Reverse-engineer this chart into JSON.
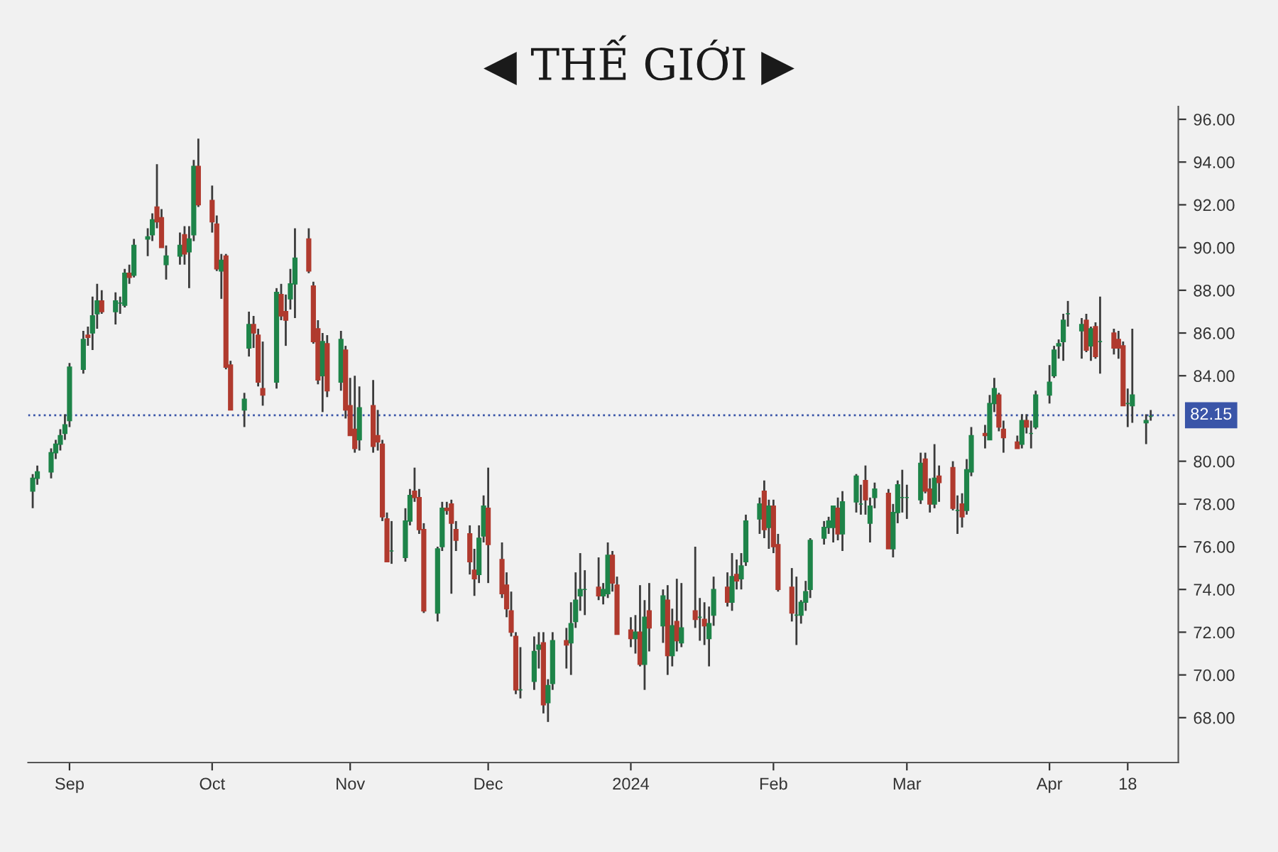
{
  "chart_data": {
    "type": "candlestick",
    "title": "◀ THẾ GIỚI ▶",
    "x": [
      "2023-08-24",
      "2023-08-25",
      "2023-08-28",
      "2023-08-29",
      "2023-08-30",
      "2023-08-31",
      "2023-09-01",
      "2023-09-04",
      "2023-09-05",
      "2023-09-06",
      "2023-09-07",
      "2023-09-08",
      "2023-09-11",
      "2023-09-12",
      "2023-09-13",
      "2023-09-14",
      "2023-09-15",
      "2023-09-18",
      "2023-09-19",
      "2023-09-20",
      "2023-09-21",
      "2023-09-22",
      "2023-09-25",
      "2023-09-26",
      "2023-09-27",
      "2023-09-28",
      "2023-09-29",
      "2023-10-02",
      "2023-10-03",
      "2023-10-04",
      "2023-10-05",
      "2023-10-06",
      "2023-10-09",
      "2023-10-10",
      "2023-10-11",
      "2023-10-12",
      "2023-10-13",
      "2023-10-16",
      "2023-10-17",
      "2023-10-18",
      "2023-10-19",
      "2023-10-20",
      "2023-10-23",
      "2023-10-24",
      "2023-10-25",
      "2023-10-26",
      "2023-10-27",
      "2023-10-30",
      "2023-10-31",
      "2023-11-01",
      "2023-11-02",
      "2023-11-03",
      "2023-11-06",
      "2023-11-07",
      "2023-11-08",
      "2023-11-09",
      "2023-11-10",
      "2023-11-13",
      "2023-11-14",
      "2023-11-15",
      "2023-11-16",
      "2023-11-17",
      "2023-11-20",
      "2023-11-21",
      "2023-11-22",
      "2023-11-23",
      "2023-11-24",
      "2023-11-27",
      "2023-11-28",
      "2023-11-29",
      "2023-11-30",
      "2023-12-01",
      "2023-12-04",
      "2023-12-05",
      "2023-12-06",
      "2023-12-07",
      "2023-12-08",
      "2023-12-11",
      "2023-12-12",
      "2023-12-13",
      "2023-12-14",
      "2023-12-15",
      "2023-12-18",
      "2023-12-19",
      "2023-12-20",
      "2023-12-21",
      "2023-12-22",
      "2023-12-25",
      "2023-12-26",
      "2023-12-27",
      "2023-12-28",
      "2023-12-29",
      "2024-01-01",
      "2024-01-02",
      "2024-01-03",
      "2024-01-04",
      "2024-01-05",
      "2024-01-08",
      "2024-01-09",
      "2024-01-10",
      "2024-01-11",
      "2024-01-12",
      "2024-01-15",
      "2024-01-16",
      "2024-01-17",
      "2024-01-18",
      "2024-01-19",
      "2024-01-22",
      "2024-01-23",
      "2024-01-24",
      "2024-01-25",
      "2024-01-26",
      "2024-01-29",
      "2024-01-30",
      "2024-01-31",
      "2024-02-01",
      "2024-02-02",
      "2024-02-05",
      "2024-02-06",
      "2024-02-07",
      "2024-02-08",
      "2024-02-09",
      "2024-02-12",
      "2024-02-13",
      "2024-02-14",
      "2024-02-15",
      "2024-02-16",
      "2024-02-19",
      "2024-02-20",
      "2024-02-21",
      "2024-02-22",
      "2024-02-23",
      "2024-02-26",
      "2024-02-27",
      "2024-02-28",
      "2024-02-29",
      "2024-03-01",
      "2024-03-04",
      "2024-03-05",
      "2024-03-06",
      "2024-03-07",
      "2024-03-08",
      "2024-03-11",
      "2024-03-12",
      "2024-03-13",
      "2024-03-14",
      "2024-03-15",
      "2024-03-18",
      "2024-03-19",
      "2024-03-20",
      "2024-03-21",
      "2024-03-22",
      "2024-03-25",
      "2024-03-26",
      "2024-03-27",
      "2024-03-28",
      "2024-03-29",
      "2024-04-01",
      "2024-04-02",
      "2024-04-03",
      "2024-04-04",
      "2024-04-05",
      "2024-04-08",
      "2024-04-09",
      "2024-04-10",
      "2024-04-11",
      "2024-04-12",
      "2024-04-15",
      "2024-04-16",
      "2024-04-17",
      "2024-04-18",
      "2024-04-19",
      "2024-04-22",
      "2024-04-23"
    ],
    "ohlc": [
      [
        78.6,
        79.4,
        77.8,
        79.2
      ],
      [
        79.2,
        79.8,
        78.9,
        79.5
      ],
      [
        79.5,
        80.6,
        79.2,
        80.4
      ],
      [
        80.4,
        81.0,
        80.1,
        80.8
      ],
      [
        80.8,
        81.5,
        80.5,
        81.2
      ],
      [
        81.3,
        82.2,
        81.0,
        81.7
      ],
      [
        81.9,
        84.6,
        81.6,
        84.4
      ],
      [
        84.3,
        86.1,
        84.1,
        85.7
      ],
      [
        85.9,
        86.3,
        85.4,
        85.8
      ],
      [
        86.0,
        87.7,
        85.2,
        86.8
      ],
      [
        86.9,
        88.3,
        86.2,
        87.5
      ],
      [
        87.5,
        88.0,
        86.9,
        87.0
      ],
      [
        87.0,
        87.9,
        86.4,
        87.5
      ],
      [
        87.4,
        87.7,
        86.9,
        87.4
      ],
      [
        87.3,
        89.0,
        87.2,
        88.8
      ],
      [
        88.8,
        89.2,
        88.3,
        88.6
      ],
      [
        88.7,
        90.4,
        88.6,
        90.1
      ],
      [
        90.4,
        90.9,
        89.6,
        90.5
      ],
      [
        90.6,
        91.6,
        90.3,
        91.3
      ],
      [
        91.9,
        93.9,
        90.9,
        91.2
      ],
      [
        91.4,
        91.8,
        90.0,
        90.0
      ],
      [
        89.2,
        90.1,
        88.5,
        89.6
      ],
      [
        89.6,
        90.7,
        89.2,
        90.1
      ],
      [
        90.6,
        91.0,
        89.2,
        89.7
      ],
      [
        89.8,
        91.0,
        88.1,
        90.4
      ],
      [
        90.6,
        94.1,
        90.3,
        93.8
      ],
      [
        93.8,
        95.1,
        91.9,
        92.0
      ],
      [
        92.2,
        92.9,
        90.7,
        91.2
      ],
      [
        91.1,
        91.5,
        88.9,
        89.0
      ],
      [
        88.9,
        89.7,
        87.6,
        89.4
      ],
      [
        89.6,
        89.7,
        84.3,
        84.4
      ],
      [
        84.5,
        84.7,
        82.4,
        82.4
      ],
      [
        82.4,
        83.2,
        81.6,
        82.9
      ],
      [
        85.3,
        87.0,
        84.9,
        86.4
      ],
      [
        86.4,
        86.8,
        85.3,
        86.0
      ],
      [
        85.9,
        86.2,
        83.5,
        83.7
      ],
      [
        83.4,
        85.6,
        82.6,
        83.1
      ],
      [
        83.7,
        88.1,
        83.4,
        87.9
      ],
      [
        87.8,
        88.3,
        86.6,
        86.8
      ],
      [
        87.0,
        87.8,
        85.4,
        86.6
      ],
      [
        87.6,
        89.0,
        87.1,
        88.3
      ],
      [
        88.3,
        90.9,
        86.7,
        89.5
      ],
      [
        90.4,
        90.9,
        88.8,
        88.9
      ],
      [
        88.2,
        88.4,
        85.5,
        85.6
      ],
      [
        86.2,
        86.6,
        83.6,
        83.8
      ],
      [
        84.0,
        86.0,
        82.3,
        85.6
      ],
      [
        85.5,
        85.9,
        83.0,
        83.3
      ],
      [
        83.7,
        86.1,
        83.3,
        85.7
      ],
      [
        85.2,
        85.4,
        82.0,
        82.4
      ],
      [
        82.6,
        83.9,
        81.2,
        81.2
      ],
      [
        81.5,
        84.0,
        80.4,
        80.6
      ],
      [
        81.0,
        83.5,
        80.5,
        82.5
      ],
      [
        82.6,
        83.8,
        80.4,
        80.7
      ],
      [
        81.2,
        82.4,
        80.5,
        80.9
      ],
      [
        80.8,
        81.0,
        77.2,
        77.4
      ],
      [
        77.3,
        77.6,
        75.3,
        75.3
      ],
      [
        75.8,
        77.2,
        75.2,
        75.8
      ],
      [
        75.5,
        77.8,
        75.3,
        77.2
      ],
      [
        77.2,
        78.7,
        77.0,
        78.4
      ],
      [
        78.6,
        79.7,
        78.1,
        78.3
      ],
      [
        78.3,
        78.7,
        76.6,
        76.8
      ],
      [
        76.8,
        77.1,
        72.9,
        73.0
      ],
      [
        72.9,
        76.0,
        72.5,
        75.9
      ],
      [
        76.0,
        78.1,
        75.8,
        77.8
      ],
      [
        77.8,
        78.1,
        77.5,
        77.7
      ],
      [
        78.0,
        78.2,
        73.8,
        77.1
      ],
      [
        76.8,
        77.2,
        75.8,
        76.3
      ],
      [
        76.6,
        77.0,
        74.7,
        75.3
      ],
      [
        74.9,
        75.9,
        73.7,
        74.5
      ],
      [
        74.7,
        77.0,
        74.3,
        76.4
      ],
      [
        76.5,
        78.4,
        76.2,
        77.9
      ],
      [
        77.8,
        79.7,
        74.3,
        76.1
      ],
      [
        75.4,
        76.2,
        73.6,
        73.8
      ],
      [
        74.2,
        74.8,
        72.7,
        73.1
      ],
      [
        73.0,
        73.9,
        71.8,
        72.0
      ],
      [
        71.8,
        72.0,
        69.1,
        69.3
      ],
      [
        69.3,
        71.3,
        68.9,
        69.3
      ],
      [
        69.7,
        71.8,
        69.3,
        71.1
      ],
      [
        71.2,
        72.0,
        70.3,
        71.4
      ],
      [
        71.5,
        72.0,
        68.2,
        68.6
      ],
      [
        68.7,
        69.8,
        67.8,
        69.5
      ],
      [
        69.6,
        72.0,
        69.3,
        71.6
      ],
      [
        71.6,
        72.2,
        70.3,
        71.4
      ],
      [
        71.5,
        73.4,
        70.0,
        72.4
      ],
      [
        72.5,
        74.8,
        72.2,
        73.5
      ],
      [
        73.7,
        75.7,
        73.0,
        74.0
      ],
      [
        74.0,
        74.9,
        72.8,
        74.0
      ],
      [
        74.1,
        75.5,
        73.5,
        73.7
      ],
      [
        73.7,
        74.3,
        73.3,
        74.0
      ],
      [
        73.8,
        76.2,
        73.6,
        75.6
      ],
      [
        75.6,
        75.8,
        73.9,
        74.3
      ],
      [
        74.2,
        74.6,
        71.9,
        71.9
      ],
      [
        72.1,
        72.7,
        71.3,
        71.7
      ],
      [
        71.7,
        72.8,
        71.0,
        72.0
      ],
      [
        72.0,
        74.2,
        70.4,
        70.5
      ],
      [
        70.5,
        73.5,
        69.3,
        72.7
      ],
      [
        73.0,
        74.3,
        71.1,
        72.2
      ],
      [
        72.3,
        74.0,
        71.5,
        73.7
      ],
      [
        73.5,
        74.2,
        70.0,
        70.9
      ],
      [
        70.9,
        73.1,
        70.4,
        72.3
      ],
      [
        72.5,
        74.5,
        71.1,
        71.6
      ],
      [
        71.5,
        74.3,
        71.3,
        72.2
      ],
      [
        73.0,
        76.0,
        72.2,
        72.6
      ],
      [
        72.7,
        73.6,
        71.6,
        72.7
      ],
      [
        72.6,
        73.4,
        71.4,
        72.3
      ],
      [
        71.7,
        73.2,
        70.4,
        72.4
      ],
      [
        72.8,
        74.6,
        72.3,
        74.0
      ],
      [
        74.1,
        74.8,
        73.2,
        73.4
      ],
      [
        73.4,
        75.7,
        73.0,
        74.6
      ],
      [
        74.7,
        75.4,
        74.0,
        74.4
      ],
      [
        74.5,
        75.7,
        74.0,
        75.1
      ],
      [
        75.3,
        77.5,
        75.1,
        77.2
      ],
      [
        77.3,
        78.3,
        76.6,
        78.0
      ],
      [
        78.6,
        79.1,
        76.4,
        76.8
      ],
      [
        76.9,
        78.2,
        75.9,
        77.9
      ],
      [
        77.9,
        78.2,
        75.7,
        76.0
      ],
      [
        76.1,
        76.6,
        73.9,
        74.0
      ],
      [
        74.1,
        75.0,
        72.5,
        72.9
      ],
      [
        72.8,
        74.6,
        71.4,
        72.8
      ],
      [
        72.8,
        73.5,
        72.4,
        73.4
      ],
      [
        73.4,
        74.4,
        73.0,
        73.9
      ],
      [
        74.0,
        76.4,
        73.6,
        76.3
      ],
      [
        76.4,
        77.2,
        76.1,
        76.9
      ],
      [
        76.9,
        77.4,
        76.6,
        77.2
      ],
      [
        76.9,
        77.9,
        76.2,
        77.9
      ],
      [
        77.8,
        78.3,
        76.3,
        76.6
      ],
      [
        76.6,
        78.6,
        75.8,
        78.1
      ],
      [
        78.1,
        79.4,
        77.6,
        79.3
      ],
      [
        78.0,
        78.9,
        77.5,
        78.0
      ],
      [
        79.1,
        79.8,
        77.5,
        78.2
      ],
      [
        77.1,
        78.3,
        76.2,
        77.9
      ],
      [
        78.3,
        79.0,
        77.8,
        78.7
      ],
      [
        78.5,
        78.7,
        75.9,
        75.9
      ],
      [
        75.9,
        78.0,
        75.5,
        77.6
      ],
      [
        77.6,
        79.1,
        77.1,
        78.9
      ],
      [
        78.3,
        79.6,
        77.6,
        78.3
      ],
      [
        78.3,
        78.9,
        77.3,
        78.3
      ],
      [
        78.2,
        80.4,
        78.0,
        79.9
      ],
      [
        80.1,
        80.4,
        78.5,
        78.6
      ],
      [
        78.7,
        79.2,
        77.6,
        78.0
      ],
      [
        78.0,
        80.8,
        77.8,
        79.2
      ],
      [
        79.3,
        79.8,
        78.1,
        79.0
      ],
      [
        79.7,
        80.0,
        77.7,
        77.8
      ],
      [
        77.7,
        78.4,
        76.6,
        77.7
      ],
      [
        78.0,
        78.5,
        76.9,
        77.4
      ],
      [
        77.7,
        80.1,
        77.5,
        79.6
      ],
      [
        79.5,
        81.6,
        79.3,
        81.2
      ],
      [
        81.3,
        81.7,
        80.6,
        81.2
      ],
      [
        81.0,
        83.1,
        81.0,
        82.7
      ],
      [
        82.7,
        83.9,
        82.3,
        83.4
      ],
      [
        83.1,
        83.2,
        81.4,
        81.6
      ],
      [
        81.5,
        81.9,
        80.4,
        81.1
      ],
      [
        80.9,
        81.2,
        80.6,
        80.6
      ],
      [
        80.8,
        82.2,
        80.6,
        81.9
      ],
      [
        81.9,
        82.2,
        81.3,
        81.6
      ],
      [
        81.3,
        81.9,
        80.6,
        81.3
      ],
      [
        81.6,
        83.3,
        81.5,
        83.1
      ],
      [
        83.1,
        84.5,
        82.7,
        83.7
      ],
      [
        84.0,
        85.4,
        83.9,
        85.2
      ],
      [
        85.4,
        85.7,
        84.8,
        85.5
      ],
      [
        85.6,
        86.9,
        84.7,
        86.6
      ],
      [
        86.9,
        87.5,
        86.3,
        86.9
      ],
      [
        86.1,
        86.7,
        84.8,
        86.4
      ],
      [
        86.6,
        86.9,
        85.1,
        85.2
      ],
      [
        85.4,
        86.3,
        84.7,
        86.2
      ],
      [
        86.3,
        86.5,
        84.8,
        84.9
      ],
      [
        85.6,
        87.7,
        84.1,
        85.6
      ],
      [
        86.0,
        86.2,
        85.0,
        85.3
      ],
      [
        85.7,
        86.1,
        84.8,
        85.3
      ],
      [
        85.4,
        85.6,
        82.6,
        82.6
      ],
      [
        82.7,
        83.4,
        81.6,
        82.7
      ],
      [
        82.6,
        86.2,
        81.8,
        83.1
      ],
      [
        81.8,
        82.2,
        80.8,
        81.9
      ],
      [
        82.1,
        82.4,
        81.9,
        82.1
      ]
    ],
    "colors": [
      "#1e8449",
      "#1e8449",
      "#1e8449",
      "#1e8449",
      "#1e8449",
      "#1e8449",
      "#1e8449",
      "#1e8449",
      "#b03a2e",
      "#1e8449",
      "#1e8449",
      "#b03a2e",
      "#1e8449",
      "#1e8449",
      "#1e8449",
      "#b03a2e",
      "#1e8449",
      "#1e8449",
      "#1e8449",
      "#b03a2e",
      "#b03a2e",
      "#1e8449",
      "#1e8449",
      "#b03a2e",
      "#1e8449",
      "#1e8449",
      "#b03a2e",
      "#b03a2e",
      "#b03a2e",
      "#1e8449",
      "#b03a2e",
      "#b03a2e",
      "#1e8449",
      "#1e8449",
      "#b03a2e",
      "#b03a2e",
      "#b03a2e",
      "#1e8449",
      "#b03a2e",
      "#b03a2e",
      "#1e8449",
      "#1e8449",
      "#b03a2e",
      "#b03a2e",
      "#b03a2e",
      "#1e8449",
      "#b03a2e",
      "#1e8449",
      "#b03a2e",
      "#b03a2e",
      "#b03a2e",
      "#1e8449",
      "#b03a2e",
      "#b03a2e",
      "#b03a2e",
      "#b03a2e",
      "#1e8449",
      "#1e8449",
      "#1e8449",
      "#b03a2e",
      "#b03a2e",
      "#b03a2e",
      "#1e8449",
      "#1e8449",
      "#b03a2e",
      "#b03a2e",
      "#b03a2e",
      "#b03a2e",
      "#b03a2e",
      "#1e8449",
      "#1e8449",
      "#b03a2e",
      "#b03a2e",
      "#b03a2e",
      "#b03a2e",
      "#b03a2e",
      "#1e8449",
      "#1e8449",
      "#1e8449",
      "#b03a2e",
      "#1e8449",
      "#1e8449",
      "#b03a2e",
      "#1e8449",
      "#1e8449",
      "#1e8449",
      "#1e8449",
      "#b03a2e",
      "#1e8449",
      "#1e8449",
      "#b03a2e",
      "#b03a2e",
      "#b03a2e",
      "#1e8449",
      "#b03a2e",
      "#1e8449",
      "#b03a2e",
      "#1e8449",
      "#b03a2e",
      "#1e8449",
      "#b03a2e",
      "#1e8449",
      "#b03a2e",
      "#1e8449",
      "#b03a2e",
      "#1e8449",
      "#1e8449",
      "#b03a2e",
      "#1e8449",
      "#b03a2e",
      "#1e8449",
      "#1e8449",
      "#1e8449",
      "#b03a2e",
      "#1e8449",
      "#b03a2e",
      "#b03a2e",
      "#b03a2e",
      "#1e8449",
      "#1e8449",
      "#1e8449",
      "#1e8449",
      "#1e8449",
      "#1e8449",
      "#1e8449",
      "#b03a2e",
      "#1e8449",
      "#1e8449",
      "#1e8449",
      "#b03a2e",
      "#1e8449",
      "#1e8449",
      "#b03a2e",
      "#1e8449",
      "#1e8449",
      "#1e8449",
      "#1e8449",
      "#1e8449",
      "#b03a2e",
      "#b03a2e",
      "#1e8449",
      "#b03a2e",
      "#b03a2e",
      "#1e8449",
      "#b03a2e",
      "#1e8449",
      "#1e8449",
      "#b03a2e",
      "#1e8449",
      "#1e8449",
      "#b03a2e",
      "#b03a2e",
      "#b03a2e",
      "#1e8449",
      "#b03a2e",
      "#1e8449",
      "#1e8449",
      "#1e8449",
      "#1e8449",
      "#1e8449",
      "#1e8449",
      "#1e8449",
      "#1e8449",
      "#b03a2e",
      "#1e8449",
      "#b03a2e",
      "#1e8449",
      "#b03a2e",
      "#b03a2e",
      "#b03a2e",
      "#1e8449",
      "#1e8449",
      "#1e8449",
      "#1e8449"
    ],
    "xlim": [
      "2023-08-23",
      "2024-04-29"
    ],
    "xticks": [
      {
        "value": "2023-09-01",
        "label": "Sep"
      },
      {
        "value": "2023-10-02",
        "label": "Oct"
      },
      {
        "value": "2023-11-01",
        "label": "Nov"
      },
      {
        "value": "2023-12-01",
        "label": "Dec"
      },
      {
        "value": "2024-01-01",
        "label": "2024"
      },
      {
        "value": "2024-02-01",
        "label": "Feb"
      },
      {
        "value": "2024-03-01",
        "label": "Mar"
      },
      {
        "value": "2024-04-01",
        "label": "Apr"
      },
      {
        "value": "2024-04-18",
        "label": "18"
      }
    ],
    "ylim": [
      65.9,
      96.6
    ],
    "yticks": [
      {
        "value": 68,
        "label": "68.00"
      },
      {
        "value": 70,
        "label": "70.00"
      },
      {
        "value": 72,
        "label": "72.00"
      },
      {
        "value": 74,
        "label": "74.00"
      },
      {
        "value": 76,
        "label": "76.00"
      },
      {
        "value": 78,
        "label": "78.00"
      },
      {
        "value": 80,
        "label": "80.00"
      },
      {
        "value": 84,
        "label": "84.00"
      },
      {
        "value": 86,
        "label": "86.00"
      },
      {
        "value": 88,
        "label": "88.00"
      },
      {
        "value": 90,
        "label": "90.00"
      },
      {
        "value": 92,
        "label": "92.00"
      },
      {
        "value": 94,
        "label": "94.00"
      },
      {
        "value": 96,
        "label": "96.00"
      }
    ],
    "ref_lines": [
      {
        "axis": "y",
        "value": 82.15,
        "label": "82.15",
        "color": "#3a55a8",
        "line_style": "dotted"
      }
    ],
    "grid": false
  }
}
